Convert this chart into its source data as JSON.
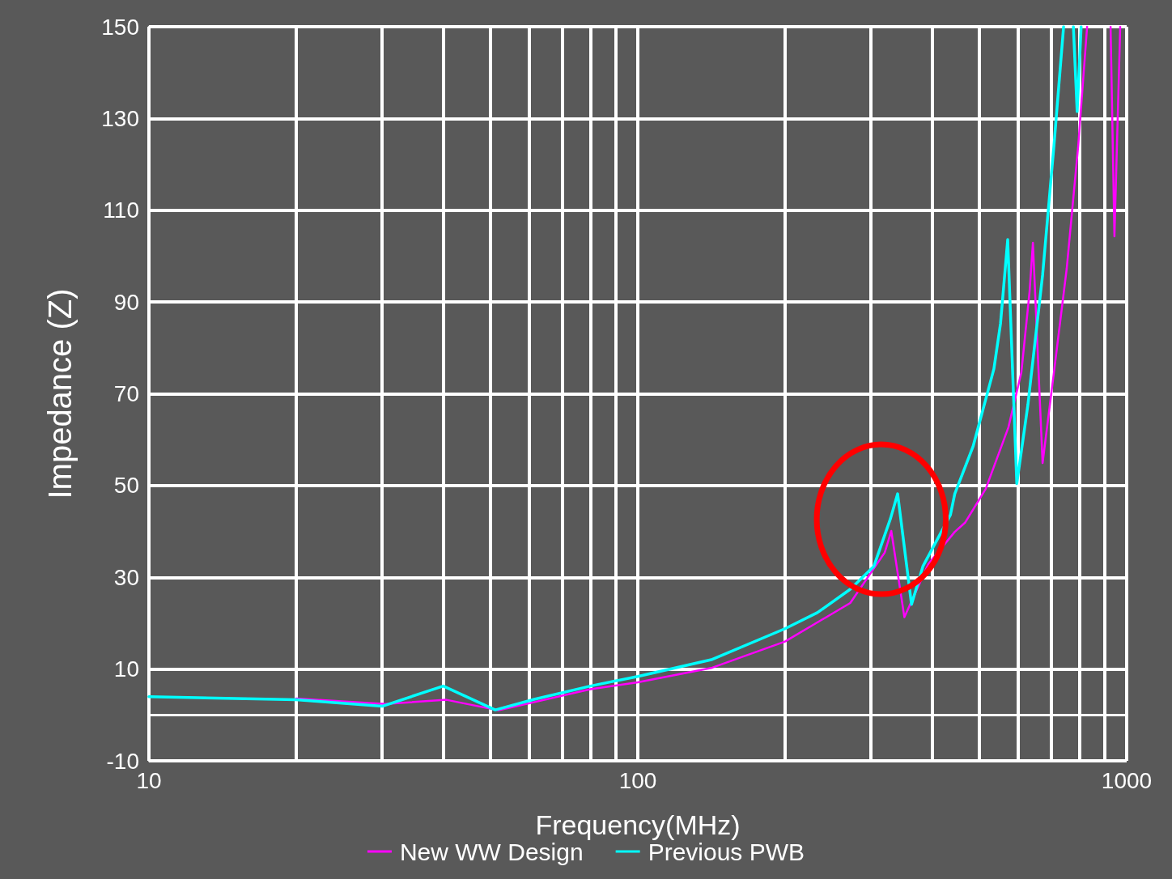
{
  "chart_data": {
    "type": "line",
    "xlabel": "Frequency(MHz)",
    "ylabel": "Impedance (Z)",
    "log": "x",
    "xlim": [
      10,
      1000
    ],
    "xticks": [
      10,
      100,
      1000
    ],
    "ylim": [
      -10,
      150
    ],
    "yticks": [
      -10,
      10,
      30,
      50,
      70,
      90,
      110,
      130,
      150
    ],
    "grid": true,
    "legend": "bottom",
    "marker": "none",
    "line_style": "solid",
    "series": [
      {
        "name": "New WW Design",
        "color": "#ff00ff",
        "x": [
          20,
          30.4,
          40.6,
          51.9,
          80,
          100,
          142,
          200,
          272,
          320,
          330,
          351,
          393,
          445,
          467,
          515,
          573,
          609,
          633,
          643,
          673,
          710,
          754,
          796,
          830,
          880,
          927,
          944,
          970
        ],
        "values": [
          3.6,
          2.4,
          3.3,
          1.0,
          5.6,
          7.1,
          10.3,
          16.0,
          24.4,
          35.4,
          40.1,
          21.3,
          32.9,
          39.9,
          41.9,
          49.3,
          62.7,
          74.7,
          92.3,
          102.9,
          54.9,
          74.7,
          97.3,
          124.1,
          150,
          null,
          150,
          104.3,
          150
        ]
      },
      {
        "name": "Previous PWB",
        "color": "#00ffff",
        "x": [
          10,
          20,
          30,
          40,
          51.1,
          61.4,
          80,
          100,
          142,
          200,
          233,
          272,
          304,
          329,
          340,
          363,
          383,
          436,
          445,
          485,
          535,
          552,
          571,
          596,
          628,
          673,
          710,
          743,
          760,
          778,
          792,
          807
        ],
        "values": [
          4.0,
          3.3,
          1.9,
          6.3,
          1.1,
          3.4,
          6.3,
          8.4,
          12.1,
          18.8,
          22.3,
          27.4,
          32.4,
          42.9,
          48.2,
          24.1,
          32.4,
          43.6,
          48.2,
          58.5,
          75.4,
          85.3,
          103.6,
          50.4,
          67.6,
          95.9,
          124.1,
          150,
          null,
          150,
          131.5,
          150
        ]
      }
    ]
  }
}
